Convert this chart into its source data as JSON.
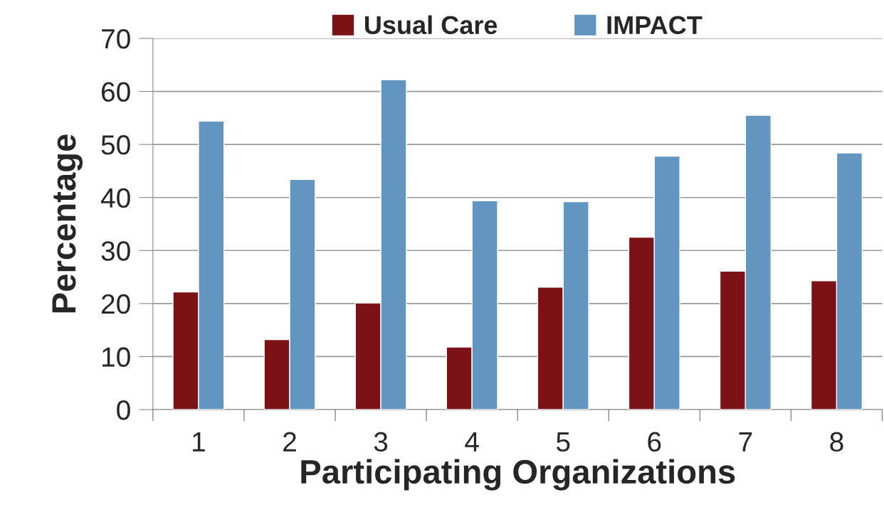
{
  "chart_data": {
    "type": "bar",
    "xlabel": "Participating Organizations",
    "ylabel": "Percentage",
    "categories": [
      "1",
      "2",
      "3",
      "4",
      "5",
      "6",
      "7",
      "8"
    ],
    "series": [
      {
        "name": "Usual Care",
        "color": "#7b1216",
        "values": [
          22.2,
          13.2,
          20.1,
          11.8,
          23.1,
          32.5,
          26.1,
          24.3
        ]
      },
      {
        "name": "IMPACT",
        "color": "#6295c0",
        "values": [
          54.4,
          43.4,
          62.2,
          39.4,
          39.2,
          47.8,
          55.5,
          48.4
        ]
      }
    ],
    "ylim": [
      0,
      70
    ],
    "yticks": [
      0,
      10,
      20,
      30,
      40,
      50,
      60,
      70
    ],
    "grid": "y",
    "legend": "top"
  }
}
